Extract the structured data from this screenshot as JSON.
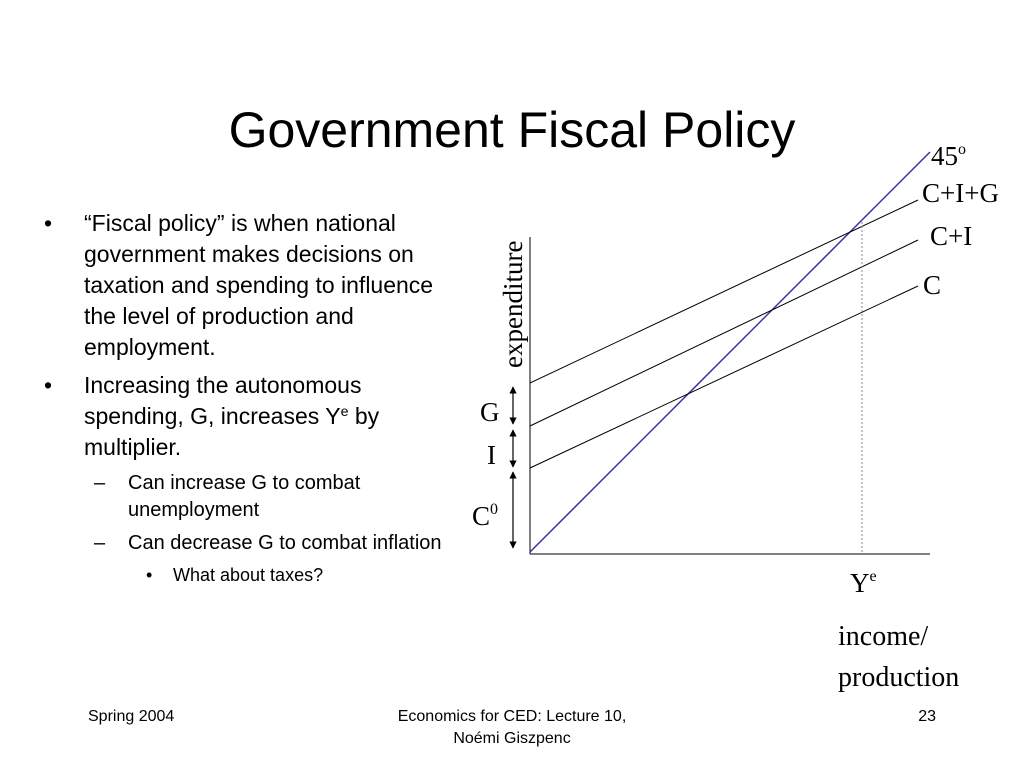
{
  "slide": {
    "title": "Government Fiscal Policy",
    "bullets": [
      {
        "marker": "•",
        "text": "“Fiscal policy” is when national government makes decisions on taxation and spending to influence the level of production and employment."
      },
      {
        "marker": "•",
        "text_before": "Increasing the autonomous spending, G, increases Y",
        "sup": "e",
        "text_after": " by multiplier."
      }
    ],
    "sub_bullets": [
      {
        "marker": "–",
        "text": "Can increase G to combat unemployment"
      },
      {
        "marker": "–",
        "text": "Can decrease G to combat inflation"
      }
    ],
    "sub_sub_bullets": [
      {
        "marker": "•",
        "text": "What about taxes?"
      }
    ]
  },
  "diagram": {
    "y_axis_label": "expenditure",
    "x_axis_label_line1": "income/",
    "x_axis_label_line2": "production",
    "line_45_label": "45",
    "line_45_sup": "o",
    "line_cig_label": "C+I+G",
    "line_ci_label": "C+I",
    "line_c_label": "C",
    "intercept_g_label": "G",
    "intercept_i_label": "I",
    "intercept_c_label": "C",
    "intercept_c_sup": "0",
    "equilibrium_label": "Y",
    "equilibrium_sup": "e",
    "colors": {
      "line_45": "#3333aa",
      "lines": "#000000",
      "dotted": "#888888"
    }
  },
  "footer": {
    "left": "Spring 2004",
    "center_line1": "Economics for CED: Lecture 10,",
    "center_line2": "Noémi Giszpenc",
    "right": "23"
  }
}
